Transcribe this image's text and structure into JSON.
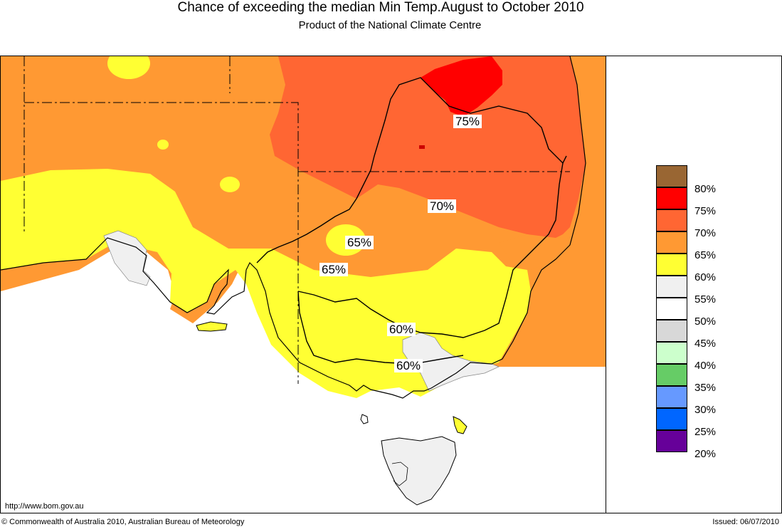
{
  "header": {
    "title": "Chance of exceeding the median Min Temp.August to October 2010",
    "subtitle": "Product of the National Climate Centre"
  },
  "legend": {
    "items": [
      {
        "label": "80%",
        "color": "#996633"
      },
      {
        "label": "75%",
        "color": "#ff0000"
      },
      {
        "label": "70%",
        "color": "#ff6633"
      },
      {
        "label": "65%",
        "color": "#ff9933"
      },
      {
        "label": "60%",
        "color": "#ffff33"
      },
      {
        "label": "55%",
        "color": "#f0f0f0"
      },
      {
        "label": "50%",
        "color": "#ffffff"
      },
      {
        "label": "45%",
        "color": "#d8d8d8"
      },
      {
        "label": "40%",
        "color": "#ccffcc"
      },
      {
        "label": "35%",
        "color": "#66cc66"
      },
      {
        "label": "30%",
        "color": "#6699ff"
      },
      {
        "label": "25%",
        "color": "#0066ff"
      },
      {
        "label": "20%",
        "color": "#660099"
      }
    ]
  },
  "contour_labels": [
    "75%",
    "70%",
    "65%",
    "65%",
    "60%",
    "60%"
  ],
  "footer": {
    "url": "http://www.bom.gov.au",
    "copyright": "© Commonwealth of Australia 2010, Australian Bureau of Meteorology",
    "issued": "Issued: 06/07/2010"
  }
}
